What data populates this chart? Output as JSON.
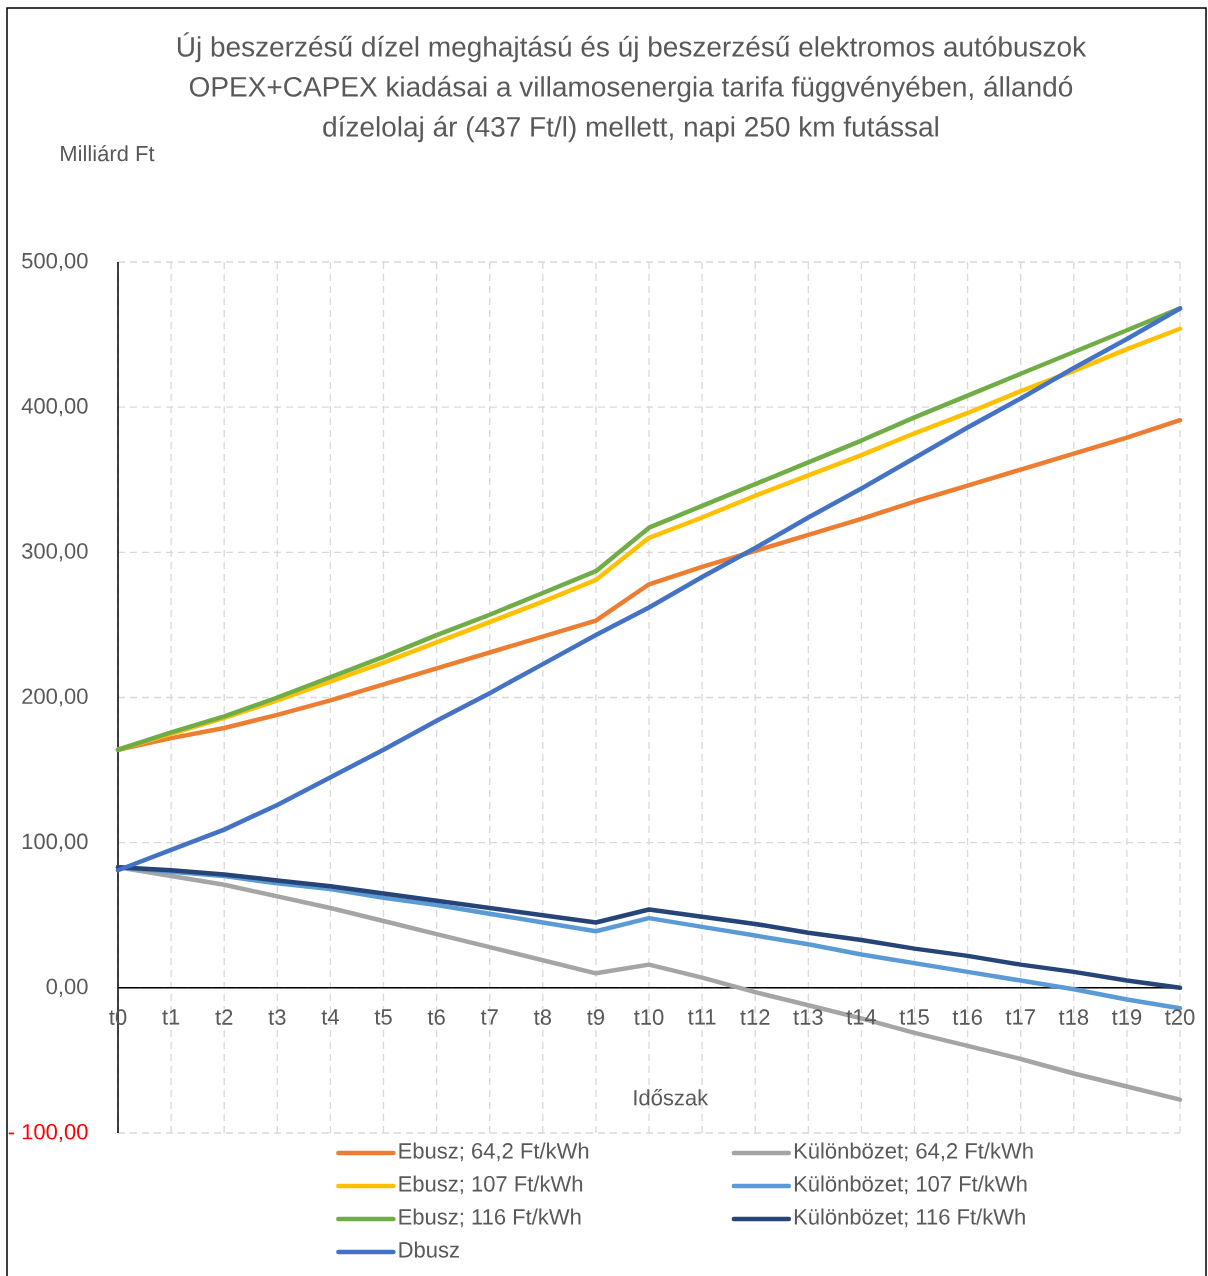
{
  "chart_data": {
    "type": "line",
    "title": "Új beszerzésű dízel meghajtású és új beszerzésű elektromos autóbuszok OPEX+CAPEX kiadásai a villamosenergia tarifa függvényében, állandó dízelolaj ár (437 Ft/l) mellett, napi 250 km futással",
    "xlabel": "Időszak",
    "ylabel": "Milliárd Ft",
    "categories": [
      "t0",
      "t1",
      "t2",
      "t3",
      "t4",
      "t5",
      "t6",
      "t7",
      "t8",
      "t9",
      "t10",
      "t11",
      "t12",
      "t13",
      "t14",
      "t15",
      "t16",
      "t17",
      "t18",
      "t19",
      "t20"
    ],
    "ylim": [
      -100,
      500
    ],
    "yticks": [
      {
        "value": -100,
        "label": "- 100,00"
      },
      {
        "value": 0,
        "label": "0,00"
      },
      {
        "value": 100,
        "label": "100,00"
      },
      {
        "value": 200,
        "label": "200,00"
      },
      {
        "value": 300,
        "label": "300,00"
      },
      {
        "value": 400,
        "label": "400,00"
      },
      {
        "value": 500,
        "label": "500,00"
      }
    ],
    "grid": true,
    "legend": "bottom",
    "line_style": "solid",
    "series": [
      {
        "name": "Ebusz; 64,2 Ft/kWh",
        "color": "#ed7d31",
        "values": [
          164,
          172,
          179,
          188,
          198,
          209,
          220,
          231,
          242,
          253,
          278,
          290,
          301,
          312,
          323,
          335,
          346,
          357,
          368,
          379,
          391
        ]
      },
      {
        "name": "Különbözet; 64,2 Ft/kWh",
        "color": "#a5a5a5",
        "values": [
          83,
          77,
          71,
          63,
          55,
          46,
          37,
          28,
          19,
          10,
          16,
          7,
          -3,
          -12,
          -21,
          -31,
          -40,
          -49,
          -59,
          -68,
          -77
        ]
      },
      {
        "name": "Ebusz; 107 Ft/kWh",
        "color": "#ffc000",
        "values": [
          164,
          175,
          186,
          198,
          211,
          224,
          238,
          252,
          266,
          281,
          310,
          324,
          339,
          353,
          367,
          382,
          396,
          411,
          425,
          440,
          454
        ]
      },
      {
        "name": "Különbözet; 107 Ft/kWh",
        "color": "#5b9bd5",
        "values": [
          83,
          80,
          77,
          72,
          68,
          62,
          57,
          51,
          45,
          39,
          48,
          42,
          36,
          30,
          23,
          17,
          11,
          5,
          -1,
          -8,
          -14
        ]
      },
      {
        "name": "Ebusz; 116 Ft/kWh",
        "color": "#70ad47",
        "values": [
          164,
          176,
          187,
          200,
          214,
          228,
          243,
          257,
          272,
          287,
          317,
          332,
          347,
          362,
          377,
          393,
          408,
          423,
          438,
          453,
          468
        ]
      },
      {
        "name": "Különbözet; 116 Ft/kWh",
        "color": "#264478",
        "values": [
          83,
          81,
          78,
          74,
          70,
          65,
          60,
          55,
          50,
          45,
          54,
          49,
          44,
          38,
          33,
          27,
          22,
          16,
          11,
          5,
          0
        ]
      },
      {
        "name": "Dbusz",
        "color": "#4472c4",
        "values": [
          81,
          95,
          109,
          126,
          145,
          164,
          184,
          203,
          223,
          243,
          262,
          283,
          303,
          324,
          344,
          365,
          386,
          406,
          427,
          447,
          468
        ]
      }
    ]
  }
}
